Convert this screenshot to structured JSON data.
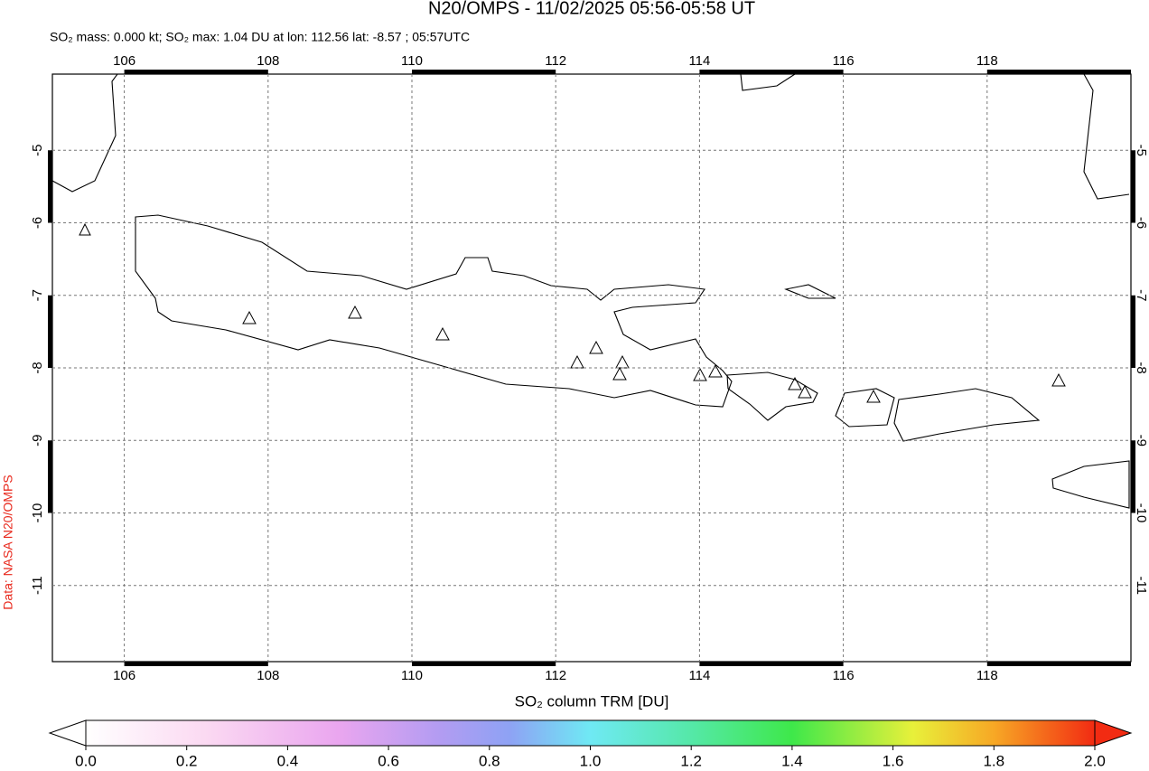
{
  "title": "N20/OMPS - 11/02/2025 05:56-05:58 UT",
  "subtitle": "SO₂ mass: 0.000 kt; SO₂ max: 1.04 DU at lon: 112.56 lat: -8.57 ; 05:57UTC",
  "credit": "Data: NASA N20/OMPS",
  "map": {
    "xlim": [
      105,
      120
    ],
    "ylim": [
      -12.05,
      -3.95
    ],
    "xticks": [
      106,
      108,
      110,
      112,
      114,
      116,
      118
    ],
    "yticks": [
      -5,
      -6,
      -7,
      -8,
      -9,
      -10,
      -11
    ],
    "grid": true
  },
  "colorbar": {
    "label": "SO₂ column TRM [DU]",
    "lim": [
      0,
      2
    ],
    "ticks": [
      {
        "value": 0,
        "label": "0.0"
      },
      {
        "value": 0.2,
        "label": "0.2"
      },
      {
        "value": 0.4,
        "label": "0.4"
      },
      {
        "value": 0.6,
        "label": "0.6"
      },
      {
        "value": 0.8,
        "label": "0.8"
      },
      {
        "value": 1,
        "label": "1.0"
      },
      {
        "value": 1.2,
        "label": "1.2"
      },
      {
        "value": 1.4,
        "label": "1.4"
      },
      {
        "value": 1.6,
        "label": "1.6"
      },
      {
        "value": 1.8,
        "label": "1.8"
      },
      {
        "value": 2,
        "label": "2.0"
      }
    ]
  }
}
